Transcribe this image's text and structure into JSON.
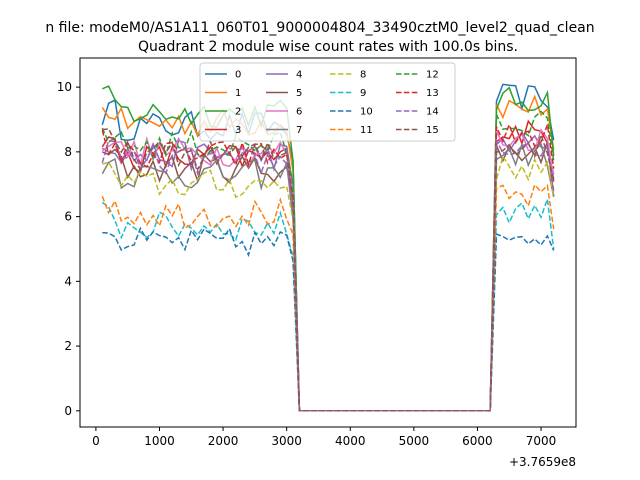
{
  "chart_data": {
    "type": "line",
    "title": "Quadrant 2 module wise count rates with 100.0s bins.",
    "suptitle": "n file: modeM0/AS1A11_060T01_9000004804_33490cztM0_level2_quad_clean",
    "offset_label": "+3.7659e8",
    "xlabel": "",
    "ylabel": "",
    "xlim": [
      -250,
      7550
    ],
    "ylim": [
      -0.5,
      10.9
    ],
    "xticks": [
      0,
      1000,
      2000,
      3000,
      4000,
      5000,
      6000,
      7000
    ],
    "yticks": [
      0,
      2,
      4,
      6,
      8,
      10
    ],
    "grid": false,
    "legend_position": "top-center",
    "legend_columns": 4,
    "gap": [
      3200,
      6200
    ],
    "series": [
      {
        "name": "0",
        "color": "#1f77b4",
        "dash": "solid",
        "level": 8.8,
        "end_level": 9.7
      },
      {
        "name": "1",
        "color": "#ff7f0e",
        "dash": "solid",
        "level": 8.9,
        "end_level": 9.4
      },
      {
        "name": "2",
        "color": "#2ca02c",
        "dash": "solid",
        "level": 9.2,
        "end_level": 9.6
      },
      {
        "name": "3",
        "color": "#d62728",
        "dash": "solid",
        "level": 7.8,
        "end_level": 8.6
      },
      {
        "name": "4",
        "color": "#9467bd",
        "dash": "solid",
        "level": 7.9,
        "end_level": 8.3
      },
      {
        "name": "5",
        "color": "#8c564b",
        "dash": "solid",
        "level": 7.5,
        "end_level": 8.0
      },
      {
        "name": "6",
        "color": "#e377c2",
        "dash": "solid",
        "level": 8.0,
        "end_level": 8.4
      },
      {
        "name": "7",
        "color": "#7f7f7f",
        "dash": "solid",
        "level": 7.3,
        "end_level": 7.9
      },
      {
        "name": "8",
        "color": "#bcbd22",
        "dash": "dashed",
        "level": 7.0,
        "end_level": 7.5
      },
      {
        "name": "9",
        "color": "#17becf",
        "dash": "dashed",
        "level": 5.7,
        "end_level": 6.2
      },
      {
        "name": "10",
        "color": "#1f77b4",
        "dash": "dashed",
        "level": 5.2,
        "end_level": 5.5
      },
      {
        "name": "11",
        "color": "#ff7f0e",
        "dash": "dashed",
        "level": 6.1,
        "end_level": 6.6
      },
      {
        "name": "12",
        "color": "#2ca02c",
        "dash": "dashed",
        "level": 8.2,
        "end_level": 8.9
      },
      {
        "name": "13",
        "color": "#d62728",
        "dash": "dashed",
        "level": 7.9,
        "end_level": 8.5
      },
      {
        "name": "14",
        "color": "#9467bd",
        "dash": "dashed",
        "level": 7.7,
        "end_level": 8.1
      },
      {
        "name": "15",
        "color": "#8c564b",
        "dash": "dashed",
        "level": 7.9,
        "end_level": 8.2
      }
    ]
  }
}
